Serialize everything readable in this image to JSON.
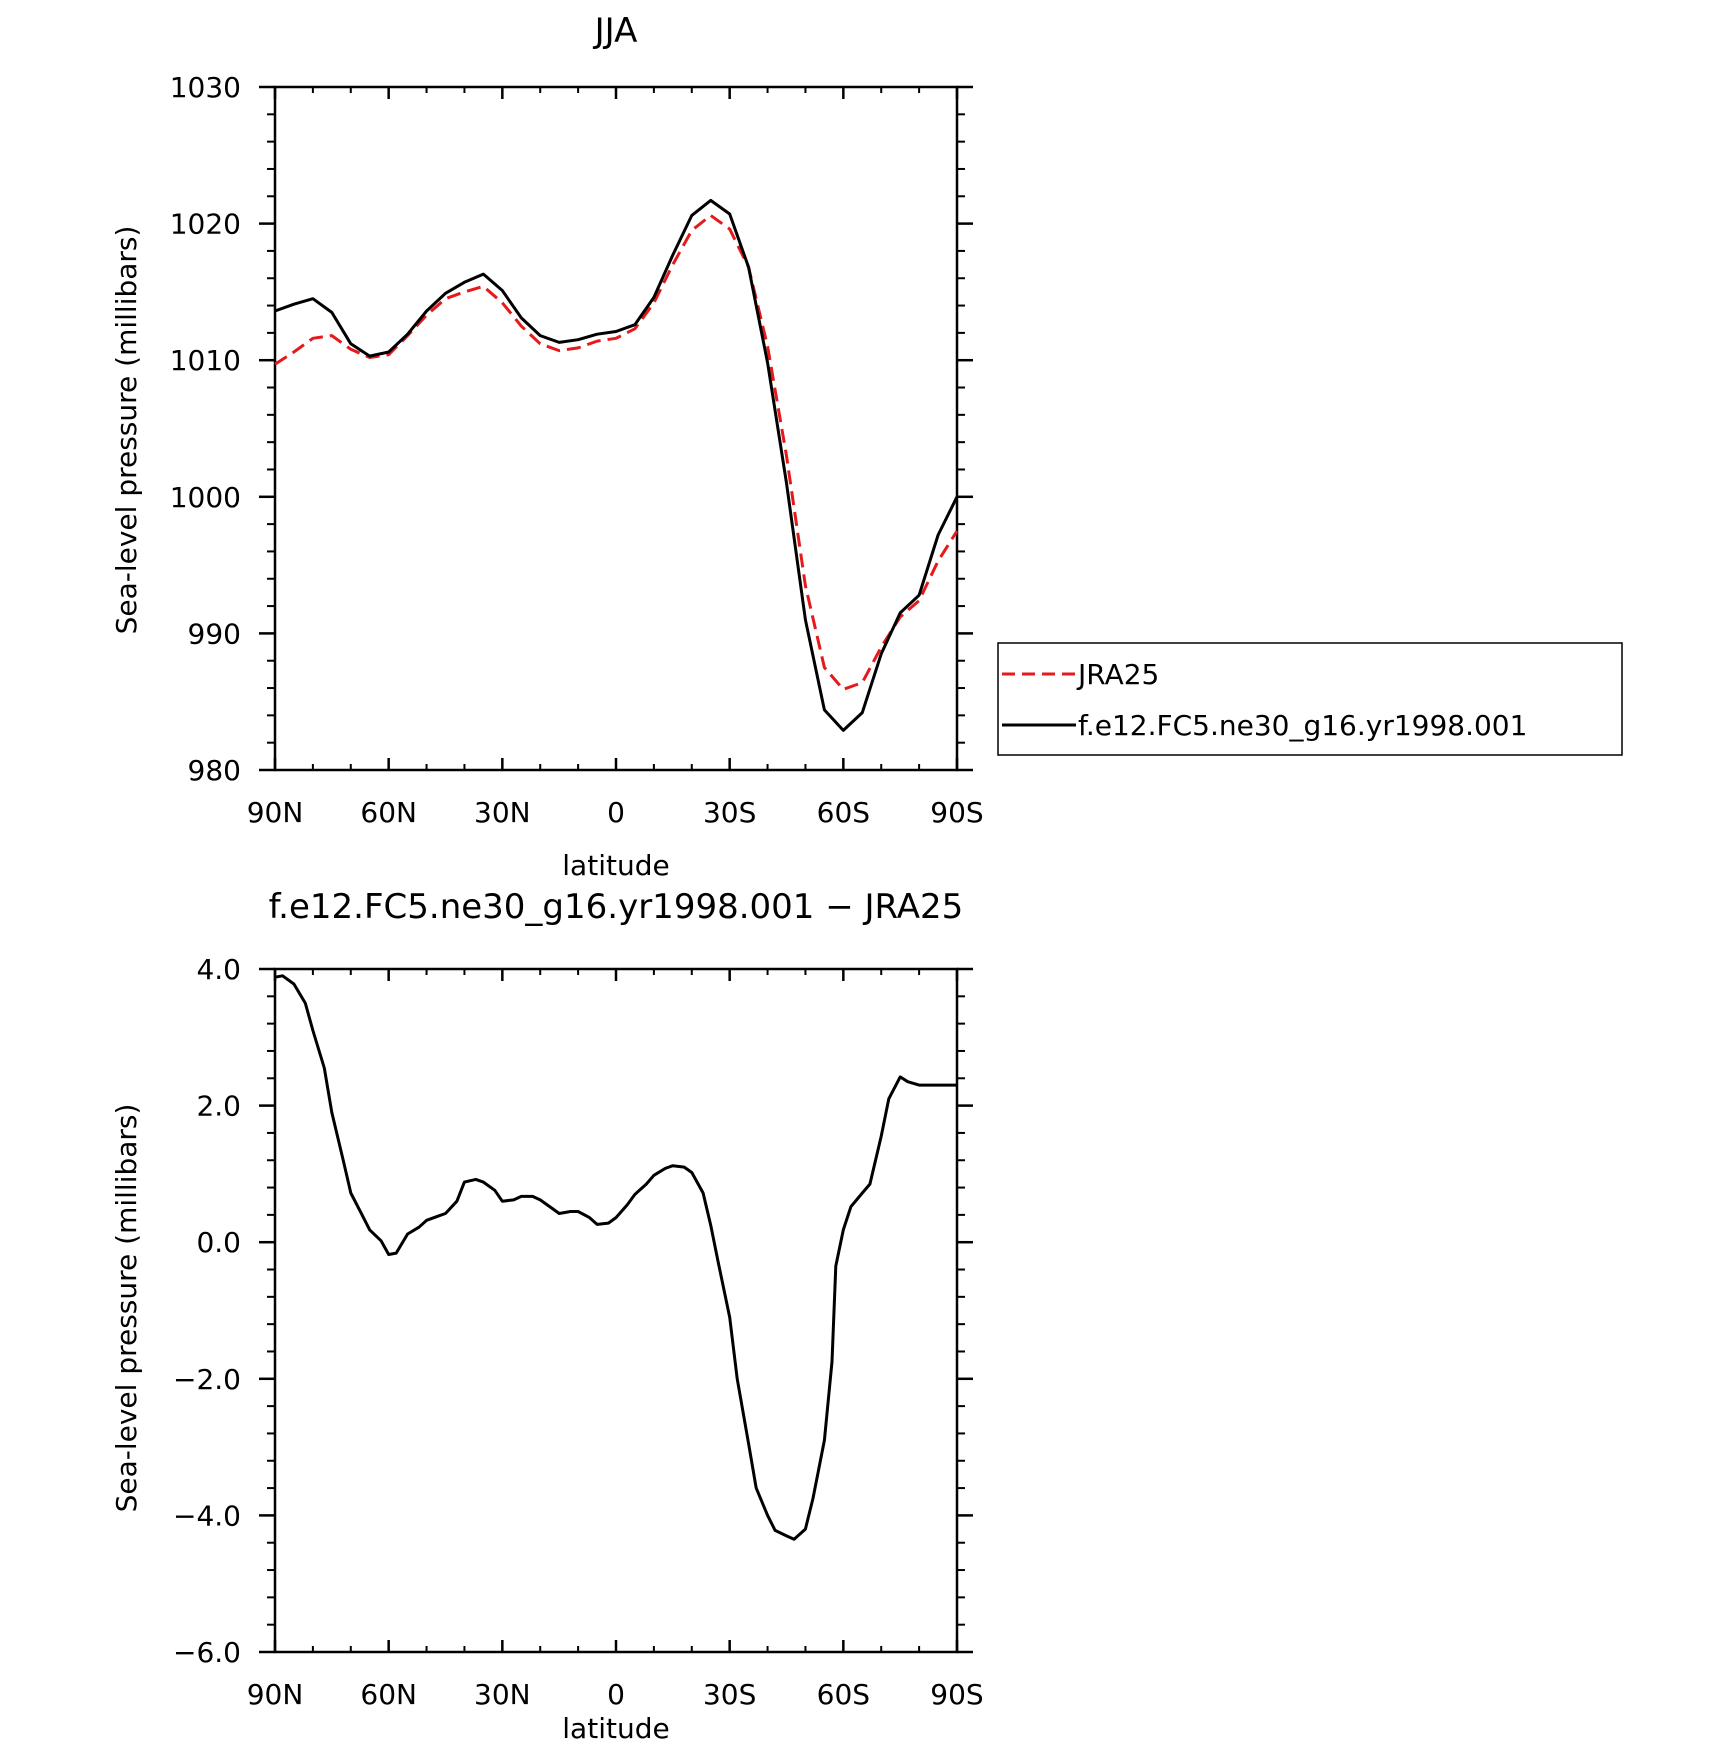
{
  "chart_data": [
    {
      "type": "line",
      "title": "JJA",
      "xlabel": "latitude",
      "ylabel": "Sea-level pressure (millibars)",
      "xlim": [
        90,
        -90
      ],
      "ylim": [
        980,
        1030
      ],
      "xticks": [
        90,
        60,
        30,
        0,
        -30,
        -60,
        -90
      ],
      "xtick_labels": [
        "90N",
        "60N",
        "30N",
        "0",
        "30S",
        "60S",
        "90S"
      ],
      "yticks": [
        980,
        990,
        1000,
        1010,
        1020,
        1030
      ],
      "ytick_labels": [
        "980",
        "990",
        "1000",
        "1010",
        "1020",
        "1030"
      ],
      "legend_position": "right",
      "series": [
        {
          "name": "JRA25",
          "color": "#e41a1c",
          "dash": true,
          "x": [
            90,
            85,
            80,
            75,
            70,
            65,
            60,
            55,
            50,
            45,
            40,
            35,
            30,
            25,
            20,
            15,
            10,
            5,
            0,
            -5,
            -10,
            -15,
            -20,
            -25,
            -30,
            -35,
            -40,
            -45,
            -50,
            -55,
            -60,
            -65,
            -70,
            -75,
            -80,
            -85,
            -90
          ],
          "y": [
            1009.7,
            1010.6,
            1011.6,
            1011.8,
            1010.8,
            1010.2,
            1010.4,
            1011.8,
            1013.3,
            1014.5,
            1015.0,
            1015.4,
            1014.2,
            1012.5,
            1011.2,
            1010.7,
            1010.9,
            1011.4,
            1011.6,
            1012.3,
            1014.2,
            1017.0,
            1019.5,
            1020.6,
            1019.6,
            1016.8,
            1011.0,
            1003.0,
            993.5,
            987.5,
            985.9,
            986.4,
            989.0,
            991.2,
            992.4,
            995.3,
            997.5
          ]
        },
        {
          "name": "f.e12.FC5.ne30_g16.yr1998.001",
          "color": "#000000",
          "dash": false,
          "x": [
            90,
            85,
            80,
            75,
            70,
            65,
            60,
            55,
            50,
            45,
            40,
            35,
            30,
            25,
            20,
            15,
            10,
            5,
            0,
            -5,
            -10,
            -15,
            -20,
            -25,
            -30,
            -35,
            -40,
            -45,
            -50,
            -55,
            -60,
            -65,
            -70,
            -75,
            -80,
            -85,
            -90
          ],
          "y": [
            1013.6,
            1014.1,
            1014.5,
            1013.5,
            1011.2,
            1010.3,
            1010.6,
            1011.9,
            1013.6,
            1014.9,
            1015.7,
            1016.3,
            1015.1,
            1013.1,
            1011.8,
            1011.3,
            1011.5,
            1011.9,
            1012.1,
            1012.6,
            1014.6,
            1017.7,
            1020.6,
            1021.7,
            1020.7,
            1016.8,
            1009.8,
            1001.0,
            991.0,
            984.4,
            982.9,
            984.2,
            988.5,
            991.5,
            992.8,
            997.2,
            1000.0
          ]
        }
      ]
    },
    {
      "type": "line",
      "title": "f.e12.FC5.ne30_g16.yr1998.001 − JRA25",
      "xlabel": "latitude",
      "ylabel": "Sea-level pressure (millibars)",
      "xlim": [
        90,
        -90
      ],
      "ylim": [
        -6,
        4
      ],
      "xticks": [
        90,
        60,
        30,
        0,
        -30,
        -60,
        -90
      ],
      "xtick_labels": [
        "90N",
        "60N",
        "30N",
        "0",
        "30S",
        "60S",
        "90S"
      ],
      "yticks": [
        -6,
        -4,
        -2,
        0,
        2,
        4
      ],
      "ytick_labels": [
        "−6.0",
        "−4.0",
        "−2.0",
        "0.0",
        "2.0",
        "4.0"
      ],
      "series": [
        {
          "color": "#000000",
          "dash": false,
          "x": [
            90,
            88,
            85,
            82,
            80,
            77,
            75,
            72,
            70,
            67,
            65,
            62,
            60,
            58,
            55,
            52,
            50,
            47,
            45,
            42,
            40,
            37,
            35,
            32,
            30,
            27,
            25,
            22,
            20,
            17,
            15,
            12,
            10,
            7,
            5,
            2,
            0,
            -3,
            -5,
            -8,
            -10,
            -13,
            -15,
            -18,
            -20,
            -23,
            -25,
            -27,
            -30,
            -32,
            -35,
            -37,
            -40,
            -42,
            -45,
            -47,
            -50,
            -52,
            -55,
            -57,
            -58,
            -60,
            -62,
            -65,
            -67,
            -70,
            -72,
            -75,
            -77,
            -80,
            -83,
            -85,
            -88,
            -90
          ],
          "y": [
            3.88,
            3.9,
            3.78,
            3.5,
            3.1,
            2.55,
            1.9,
            1.2,
            0.72,
            0.4,
            0.18,
            0.02,
            -0.18,
            -0.16,
            0.12,
            0.22,
            0.32,
            0.38,
            0.42,
            0.6,
            0.88,
            0.92,
            0.88,
            0.76,
            0.6,
            0.62,
            0.67,
            0.67,
            0.62,
            0.5,
            0.42,
            0.45,
            0.45,
            0.36,
            0.26,
            0.28,
            0.36,
            0.55,
            0.7,
            0.85,
            0.98,
            1.08,
            1.12,
            1.1,
            1.02,
            0.72,
            0.25,
            -0.3,
            -1.1,
            -2.0,
            -2.95,
            -3.6,
            -4.0,
            -4.22,
            -4.3,
            -4.35,
            -4.2,
            -3.75,
            -2.9,
            -1.75,
            -0.35,
            0.18,
            0.52,
            0.72,
            0.85,
            1.55,
            2.1,
            2.42,
            2.35,
            2.3,
            2.3,
            2.3,
            2.3,
            2.3
          ]
        }
      ]
    }
  ]
}
